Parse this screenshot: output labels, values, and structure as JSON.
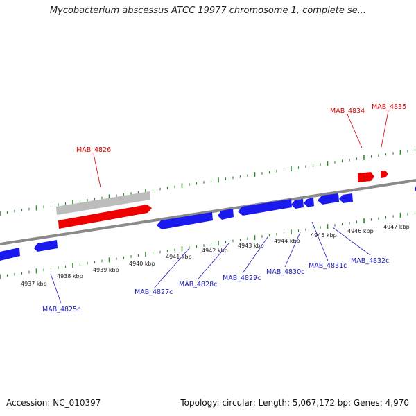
{
  "title": "Mycobacterium abscessus ATCC 19977 chromosome 1, complete se...",
  "footer": {
    "accession": "Accession: NC_010397",
    "summary": "Topology: circular; Length: 5,067,172 bp; Genes: 4,970"
  },
  "colors": {
    "forward_gene": "#ee0000",
    "reverse_gene": "#1a1aee",
    "pseudo_gene": "#bdbdbd",
    "backbone": "#8a8a8a",
    "ticks": "#2e8b2e",
    "forward_label": "#d40000",
    "reverse_label": "#1a1ab4"
  },
  "scale_labels": [
    "4937 kbp",
    "4938 kbp",
    "4939 kbp",
    "4940 kbp",
    "4941 kbp",
    "4942 kbp",
    "4943 kbp",
    "4944 kbp",
    "4945 kbp",
    "4946 kbp",
    "4947 kbp"
  ],
  "gene_labels": {
    "forward": [
      "MAB_4826",
      "MAB_4834",
      "MAB_4835"
    ],
    "reverse": [
      "MAB_4825c",
      "MAB_4827c",
      "MAB_4828c",
      "MAB_4829c",
      "MAB_4830c",
      "MAB_4831c",
      "MAB_4832c"
    ]
  }
}
